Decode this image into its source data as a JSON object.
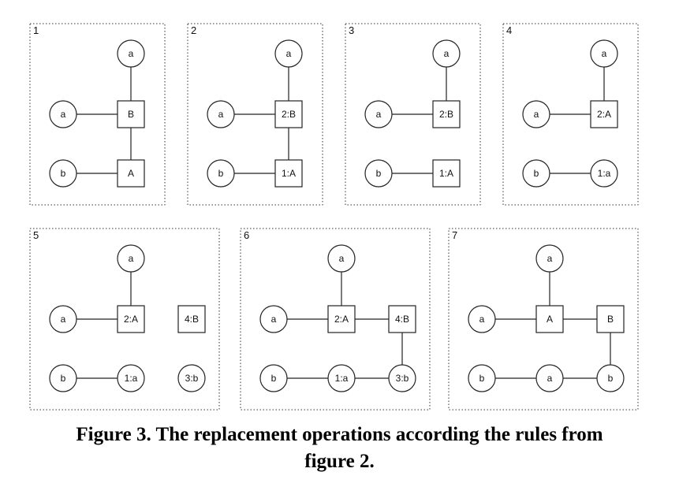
{
  "caption": {
    "line1": "Figure 3. The replacement operations according the rules from",
    "line2": "figure 2."
  },
  "panels": [
    {
      "number": "1",
      "nodes": [
        {
          "id": "top",
          "shape": "circle",
          "label": "a"
        },
        {
          "id": "left1",
          "shape": "circle",
          "label": "a"
        },
        {
          "id": "mid1",
          "shape": "square",
          "label": "B"
        },
        {
          "id": "left2",
          "shape": "circle",
          "label": "b"
        },
        {
          "id": "mid2",
          "shape": "square",
          "label": "A"
        }
      ],
      "edges": [
        [
          "top",
          "mid1"
        ],
        [
          "left1",
          "mid1"
        ],
        [
          "mid1",
          "mid2"
        ],
        [
          "left2",
          "mid2"
        ]
      ]
    },
    {
      "number": "2",
      "nodes": [
        {
          "id": "top",
          "shape": "circle",
          "label": "a"
        },
        {
          "id": "left1",
          "shape": "circle",
          "label": "a"
        },
        {
          "id": "mid1",
          "shape": "square",
          "label": "2:B"
        },
        {
          "id": "left2",
          "shape": "circle",
          "label": "b"
        },
        {
          "id": "mid2",
          "shape": "square",
          "label": "1:A"
        }
      ],
      "edges": [
        [
          "top",
          "mid1"
        ],
        [
          "left1",
          "mid1"
        ],
        [
          "mid1",
          "mid2"
        ],
        [
          "left2",
          "mid2"
        ]
      ]
    },
    {
      "number": "3",
      "nodes": [
        {
          "id": "top",
          "shape": "circle",
          "label": "a"
        },
        {
          "id": "left1",
          "shape": "circle",
          "label": "a"
        },
        {
          "id": "mid1",
          "shape": "square",
          "label": "2:B"
        },
        {
          "id": "left2",
          "shape": "circle",
          "label": "b"
        },
        {
          "id": "mid2",
          "shape": "square",
          "label": "1:A"
        }
      ],
      "edges": [
        [
          "top",
          "mid1"
        ],
        [
          "left1",
          "mid1"
        ],
        [
          "left2",
          "mid2"
        ]
      ]
    },
    {
      "number": "4",
      "nodes": [
        {
          "id": "top",
          "shape": "circle",
          "label": "a"
        },
        {
          "id": "left1",
          "shape": "circle",
          "label": "a"
        },
        {
          "id": "mid1",
          "shape": "square",
          "label": "2:A"
        },
        {
          "id": "left2",
          "shape": "circle",
          "label": "b"
        },
        {
          "id": "mid2",
          "shape": "circle",
          "label": "1:a"
        }
      ],
      "edges": [
        [
          "top",
          "mid1"
        ],
        [
          "left1",
          "mid1"
        ],
        [
          "left2",
          "mid2"
        ]
      ]
    },
    {
      "number": "5",
      "nodes": [
        {
          "id": "top",
          "shape": "circle",
          "label": "a"
        },
        {
          "id": "left1",
          "shape": "circle",
          "label": "a"
        },
        {
          "id": "mid1",
          "shape": "square",
          "label": "2:A"
        },
        {
          "id": "right1",
          "shape": "square",
          "label": "4:B"
        },
        {
          "id": "left2",
          "shape": "circle",
          "label": "b"
        },
        {
          "id": "mid2",
          "shape": "circle",
          "label": "1:a"
        },
        {
          "id": "right2",
          "shape": "circle",
          "label": "3:b"
        }
      ],
      "edges": [
        [
          "top",
          "mid1"
        ],
        [
          "left1",
          "mid1"
        ],
        [
          "left2",
          "mid2"
        ]
      ]
    },
    {
      "number": "6",
      "nodes": [
        {
          "id": "top",
          "shape": "circle",
          "label": "a"
        },
        {
          "id": "left1",
          "shape": "circle",
          "label": "a"
        },
        {
          "id": "mid1",
          "shape": "square",
          "label": "2:A"
        },
        {
          "id": "right1",
          "shape": "square",
          "label": "4:B"
        },
        {
          "id": "left2",
          "shape": "circle",
          "label": "b"
        },
        {
          "id": "mid2",
          "shape": "circle",
          "label": "1:a"
        },
        {
          "id": "right2",
          "shape": "circle",
          "label": "3:b"
        }
      ],
      "edges": [
        [
          "top",
          "mid1"
        ],
        [
          "left1",
          "mid1"
        ],
        [
          "mid1",
          "right1"
        ],
        [
          "right1",
          "right2"
        ],
        [
          "left2",
          "mid2"
        ],
        [
          "mid2",
          "right2"
        ]
      ]
    },
    {
      "number": "7",
      "nodes": [
        {
          "id": "top",
          "shape": "circle",
          "label": "a"
        },
        {
          "id": "left1",
          "shape": "circle",
          "label": "a"
        },
        {
          "id": "mid1",
          "shape": "square",
          "label": "A"
        },
        {
          "id": "right1",
          "shape": "square",
          "label": "B"
        },
        {
          "id": "left2",
          "shape": "circle",
          "label": "b"
        },
        {
          "id": "mid2",
          "shape": "circle",
          "label": "a"
        },
        {
          "id": "right2",
          "shape": "circle",
          "label": "b"
        }
      ],
      "edges": [
        [
          "top",
          "mid1"
        ],
        [
          "left1",
          "mid1"
        ],
        [
          "mid1",
          "right1"
        ],
        [
          "right1",
          "right2"
        ],
        [
          "left2",
          "mid2"
        ],
        [
          "mid2",
          "right2"
        ]
      ]
    }
  ]
}
